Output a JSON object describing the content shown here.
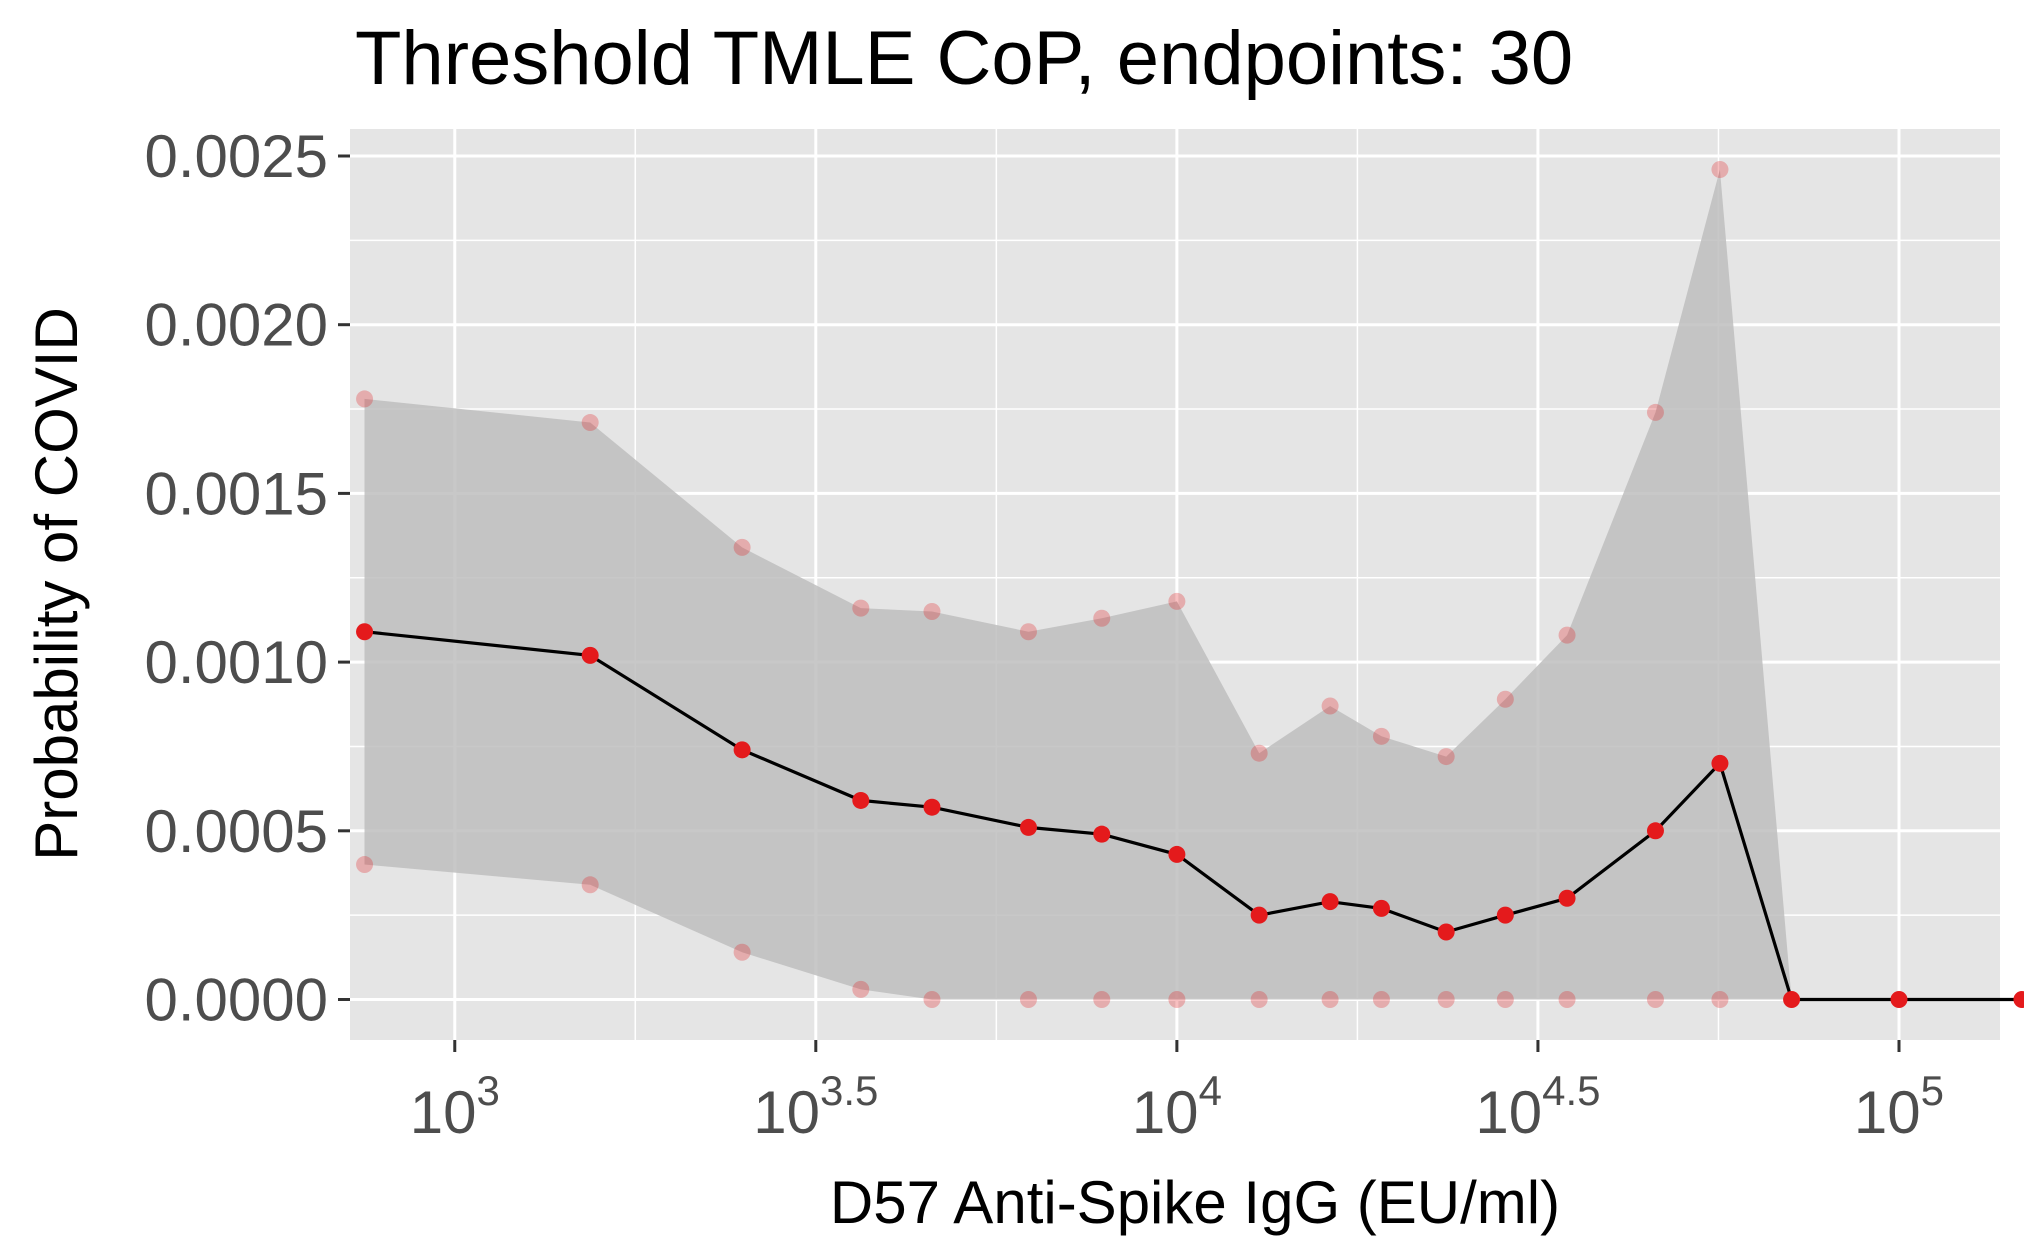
{
  "chart_data": {
    "type": "line",
    "title": "Threshold TMLE CoP, endpoints: 30",
    "xlabel": "D57 Anti-Spike IgG (EU/ml)",
    "ylabel": "Probability of COVID",
    "x_scale": "log10",
    "xlim": [
      716,
      138000
    ],
    "ylim": [
      -0.00012,
      0.00258
    ],
    "x_ticks": [
      {
        "base": "10",
        "exp": "3",
        "value": 1000
      },
      {
        "base": "10",
        "exp": "3.5",
        "value": 3162
      },
      {
        "base": "10",
        "exp": "4",
        "value": 10000
      },
      {
        "base": "10",
        "exp": "4.5",
        "value": 31623
      },
      {
        "base": "10",
        "exp": "5",
        "value": 100000
      }
    ],
    "y_ticks": [
      {
        "label": "0.0000",
        "value": 0
      },
      {
        "label": "0.0005",
        "value": 0.0005
      },
      {
        "label": "0.0010",
        "value": 0.001
      },
      {
        "label": "0.0015",
        "value": 0.0015
      },
      {
        "label": "0.0020",
        "value": 0.002
      },
      {
        "label": "0.0025",
        "value": 0.0025
      }
    ],
    "grid": true,
    "background": "#e5e5e5",
    "band_color": "#bebebe",
    "line_color": "#000000",
    "point_color": "#e41a1c",
    "ci_point_color": "#f4a3a4",
    "x": [
      750,
      1540,
      2500,
      3650,
      4580,
      6230,
      7870,
      10000,
      13000,
      16300,
      19200,
      23600,
      28500,
      34700,
      46000,
      56500,
      71000,
      100000,
      148000
    ],
    "estimate": [
      0.00109,
      0.00102,
      0.00074,
      0.00059,
      0.00057,
      0.00051,
      0.00049,
      0.00043,
      0.00025,
      0.00029,
      0.00027,
      0.0002,
      0.00025,
      0.0003,
      0.0005,
      0.0007,
      0.0,
      0.0,
      0.0
    ],
    "lower": [
      0.0004,
      0.00034,
      0.00014,
      3e-05,
      0.0,
      0.0,
      0.0,
      0.0,
      0.0,
      0.0,
      0.0,
      0.0,
      0.0,
      0.0,
      0.0,
      0.0,
      0.0,
      0.0,
      0.0
    ],
    "upper": [
      0.00178,
      0.00171,
      0.00134,
      0.00116,
      0.00115,
      0.00109,
      0.00113,
      0.00118,
      0.00073,
      0.00087,
      0.00078,
      0.00072,
      0.00089,
      0.00108,
      0.00174,
      0.00246,
      0.0,
      0.0,
      0.0
    ],
    "ci_points_count": 16
  }
}
